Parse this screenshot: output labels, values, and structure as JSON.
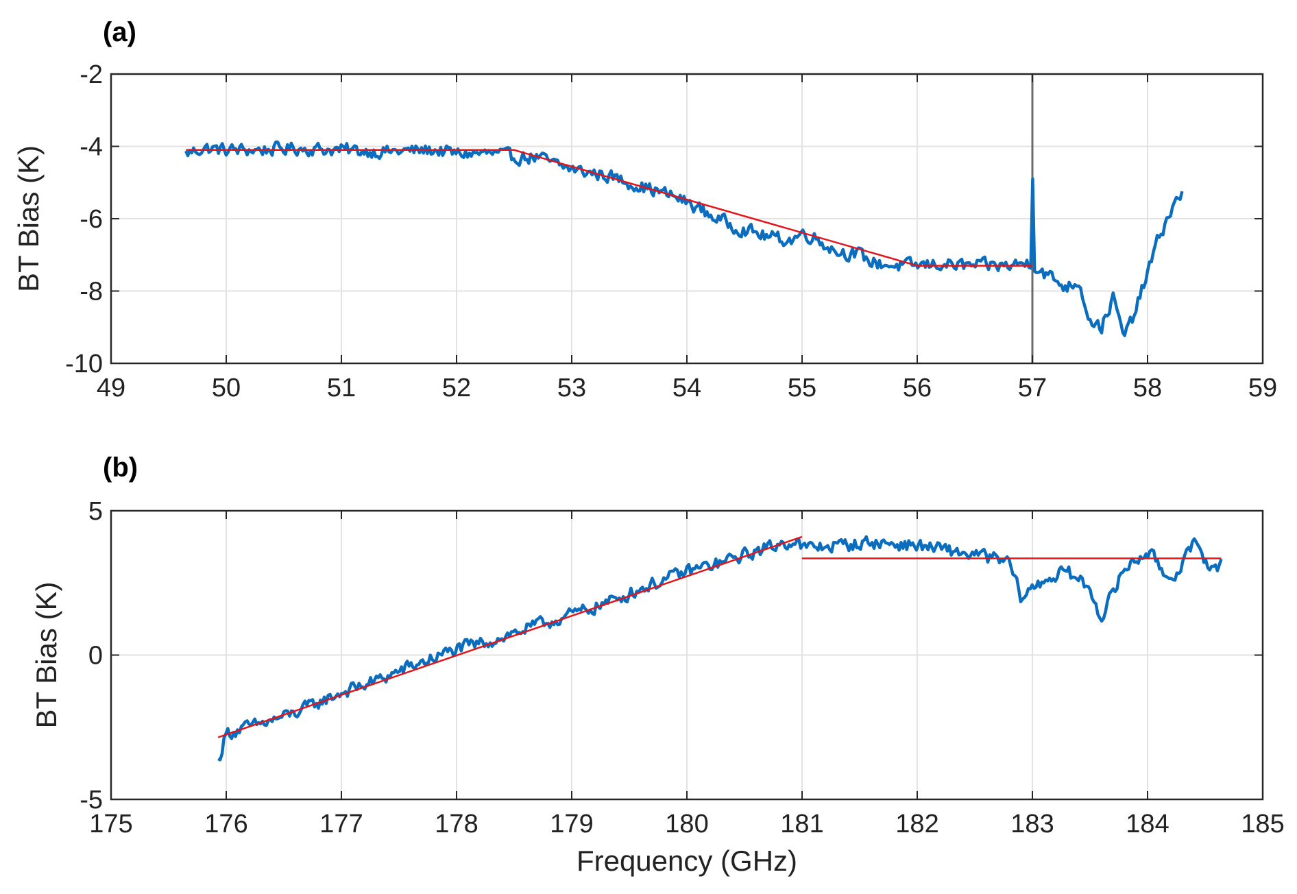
{
  "chart_data": [
    {
      "type": "line",
      "panel_label": "(a)",
      "xlabel": "",
      "ylabel": "BT Bias (K)",
      "xlim": [
        49,
        59
      ],
      "ylim": [
        -10,
        -2
      ],
      "xticks": [
        49,
        50,
        51,
        52,
        53,
        54,
        55,
        56,
        57,
        58,
        59
      ],
      "yticks": [
        -10,
        -8,
        -6,
        -4,
        -2
      ],
      "grid": true,
      "series": [
        {
          "color": "#0a6dbd",
          "style": "noisy",
          "x": [
            49.65,
            49.8,
            50.0,
            50.3,
            50.6,
            51.0,
            51.4,
            51.8,
            52.0,
            52.3,
            52.5,
            52.7,
            52.9,
            53.1,
            53.3,
            53.5,
            53.7,
            53.9,
            54.1,
            54.2,
            54.4,
            54.5,
            54.7,
            54.9,
            55.0,
            55.1,
            55.3,
            55.5,
            55.6,
            55.8,
            56.0,
            56.2,
            56.4,
            56.6,
            56.8,
            56.98,
            57.1,
            57.3,
            57.4,
            57.5,
            57.6,
            57.7,
            57.8,
            57.9,
            58.0,
            58.1,
            58.2,
            58.3
          ],
          "y": [
            -4.2,
            -4.05,
            -4.1,
            -4.1,
            -4.05,
            -4.1,
            -4.15,
            -4.1,
            -4.2,
            -4.2,
            -4.3,
            -4.3,
            -4.55,
            -4.7,
            -4.8,
            -5.0,
            -5.2,
            -5.4,
            -5.7,
            -5.9,
            -6.2,
            -6.3,
            -6.5,
            -6.6,
            -6.4,
            -6.5,
            -6.9,
            -7.0,
            -7.2,
            -7.3,
            -7.3,
            -7.25,
            -7.3,
            -7.3,
            -7.3,
            -7.2,
            -7.5,
            -7.9,
            -7.7,
            -8.8,
            -9.0,
            -8.2,
            -9.3,
            -8.5,
            -7.5,
            -6.5,
            -5.8,
            -5.3
          ],
          "spikes": [
            {
              "x": 57.0,
              "y": -4.9
            }
          ]
        },
        {
          "color": "#e4141b",
          "style": "fit",
          "x": [
            49.65,
            52.5,
            56.0,
            57.0
          ],
          "y": [
            -4.1,
            -4.1,
            -7.3,
            -7.3
          ]
        }
      ],
      "vertical_lines": [
        57
      ]
    },
    {
      "type": "line",
      "panel_label": "(b)",
      "xlabel": "Frequency (GHz)",
      "ylabel": "BT Bias (K)",
      "xlim": [
        175,
        185
      ],
      "ylim": [
        -5,
        5
      ],
      "xticks": [
        175,
        176,
        177,
        178,
        179,
        180,
        181,
        182,
        183,
        184,
        185
      ],
      "yticks": [
        -5,
        0,
        5
      ],
      "grid": true,
      "series": [
        {
          "color": "#0a6dbd",
          "style": "noisy",
          "x": [
            175.93,
            176.0,
            176.3,
            176.6,
            177.0,
            177.3,
            177.6,
            178.0,
            178.3,
            178.6,
            179.0,
            179.3,
            179.6,
            180.0,
            180.3,
            180.6,
            180.95,
            181.0,
            181.3,
            181.6,
            182.0,
            182.3,
            182.6,
            182.8,
            182.9,
            183.1,
            183.3,
            183.5,
            183.6,
            183.8,
            184.0,
            184.2,
            184.4,
            184.6,
            184.64
          ],
          "y": [
            -3.7,
            -2.7,
            -2.4,
            -2.0,
            -1.3,
            -0.9,
            -0.4,
            0.2,
            0.5,
            0.9,
            1.4,
            1.8,
            2.3,
            2.9,
            3.2,
            3.6,
            4.0,
            3.7,
            3.8,
            3.9,
            3.8,
            3.6,
            3.4,
            3.2,
            2.0,
            2.6,
            2.9,
            2.3,
            1.3,
            3.0,
            3.6,
            2.6,
            3.8,
            2.9,
            3.3
          ]
        },
        {
          "color": "#e4141b",
          "style": "fit",
          "x": [
            175.93,
            181.0
          ],
          "y": [
            -2.85,
            4.1
          ]
        },
        {
          "color": "#e4141b",
          "style": "fit",
          "x": [
            181.0,
            184.64
          ],
          "y": [
            3.35,
            3.35
          ]
        }
      ]
    }
  ]
}
